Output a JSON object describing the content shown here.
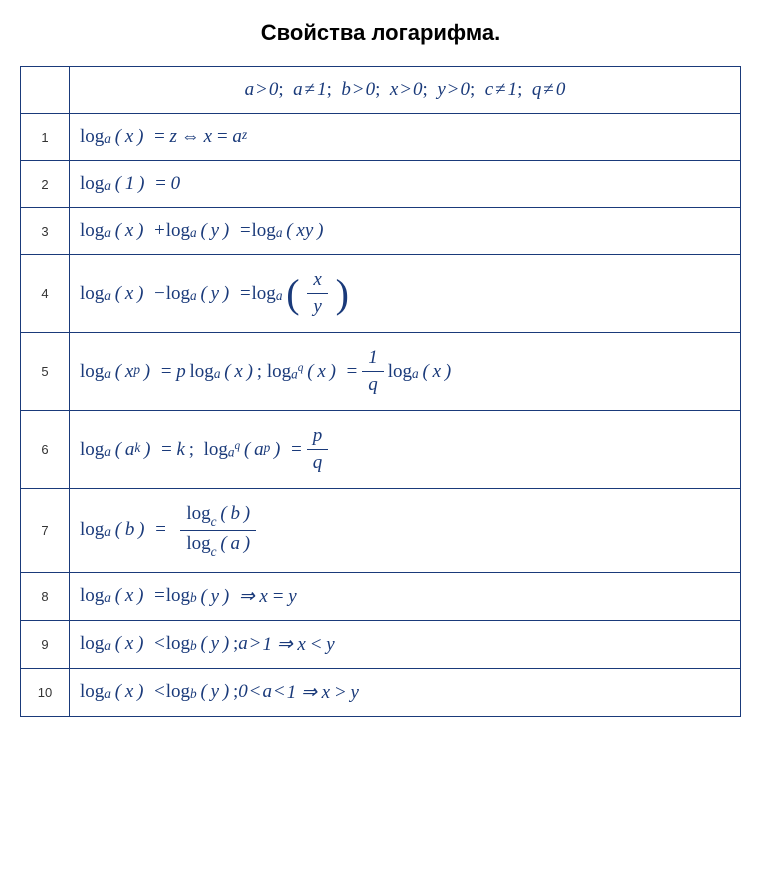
{
  "title": "Свойства логарифма.",
  "table": {
    "border_color": "#1a3a7a",
    "text_color": "#1a3a7a",
    "num_color": "#333333",
    "header": "a>0; a≠1; b>0; x>0; y>0; c≠1; q≠0",
    "rows": [
      {
        "num": "1",
        "formula": "log_a(x) = z ⇔ x = a^z"
      },
      {
        "num": "2",
        "formula": "log_a(1) = 0"
      },
      {
        "num": "3",
        "formula": "log_a(x) + log_a(y) = log_a(xy)"
      },
      {
        "num": "4",
        "formula": "log_a(x) − log_a(y) = log_a(x/y)"
      },
      {
        "num": "5",
        "formula": "log_a(x^p) = p·log_a(x); log_{a^q}(x) = (1/q)·log_a(x)"
      },
      {
        "num": "6",
        "formula": "log_a(a^k) = k; log_{a^q}(a^p) = p/q"
      },
      {
        "num": "7",
        "formula": "log_a(b) = log_c(b) / log_c(a)"
      },
      {
        "num": "8",
        "formula": "log_a(x) = log_b(y) ⇒ x = y"
      },
      {
        "num": "9",
        "formula": "log_a(x) < log_b(y); a>1 ⇒ x<y"
      },
      {
        "num": "10",
        "formula": "log_a(x) < log_b(y); 0<a<1 ⇒ x>y"
      }
    ]
  }
}
